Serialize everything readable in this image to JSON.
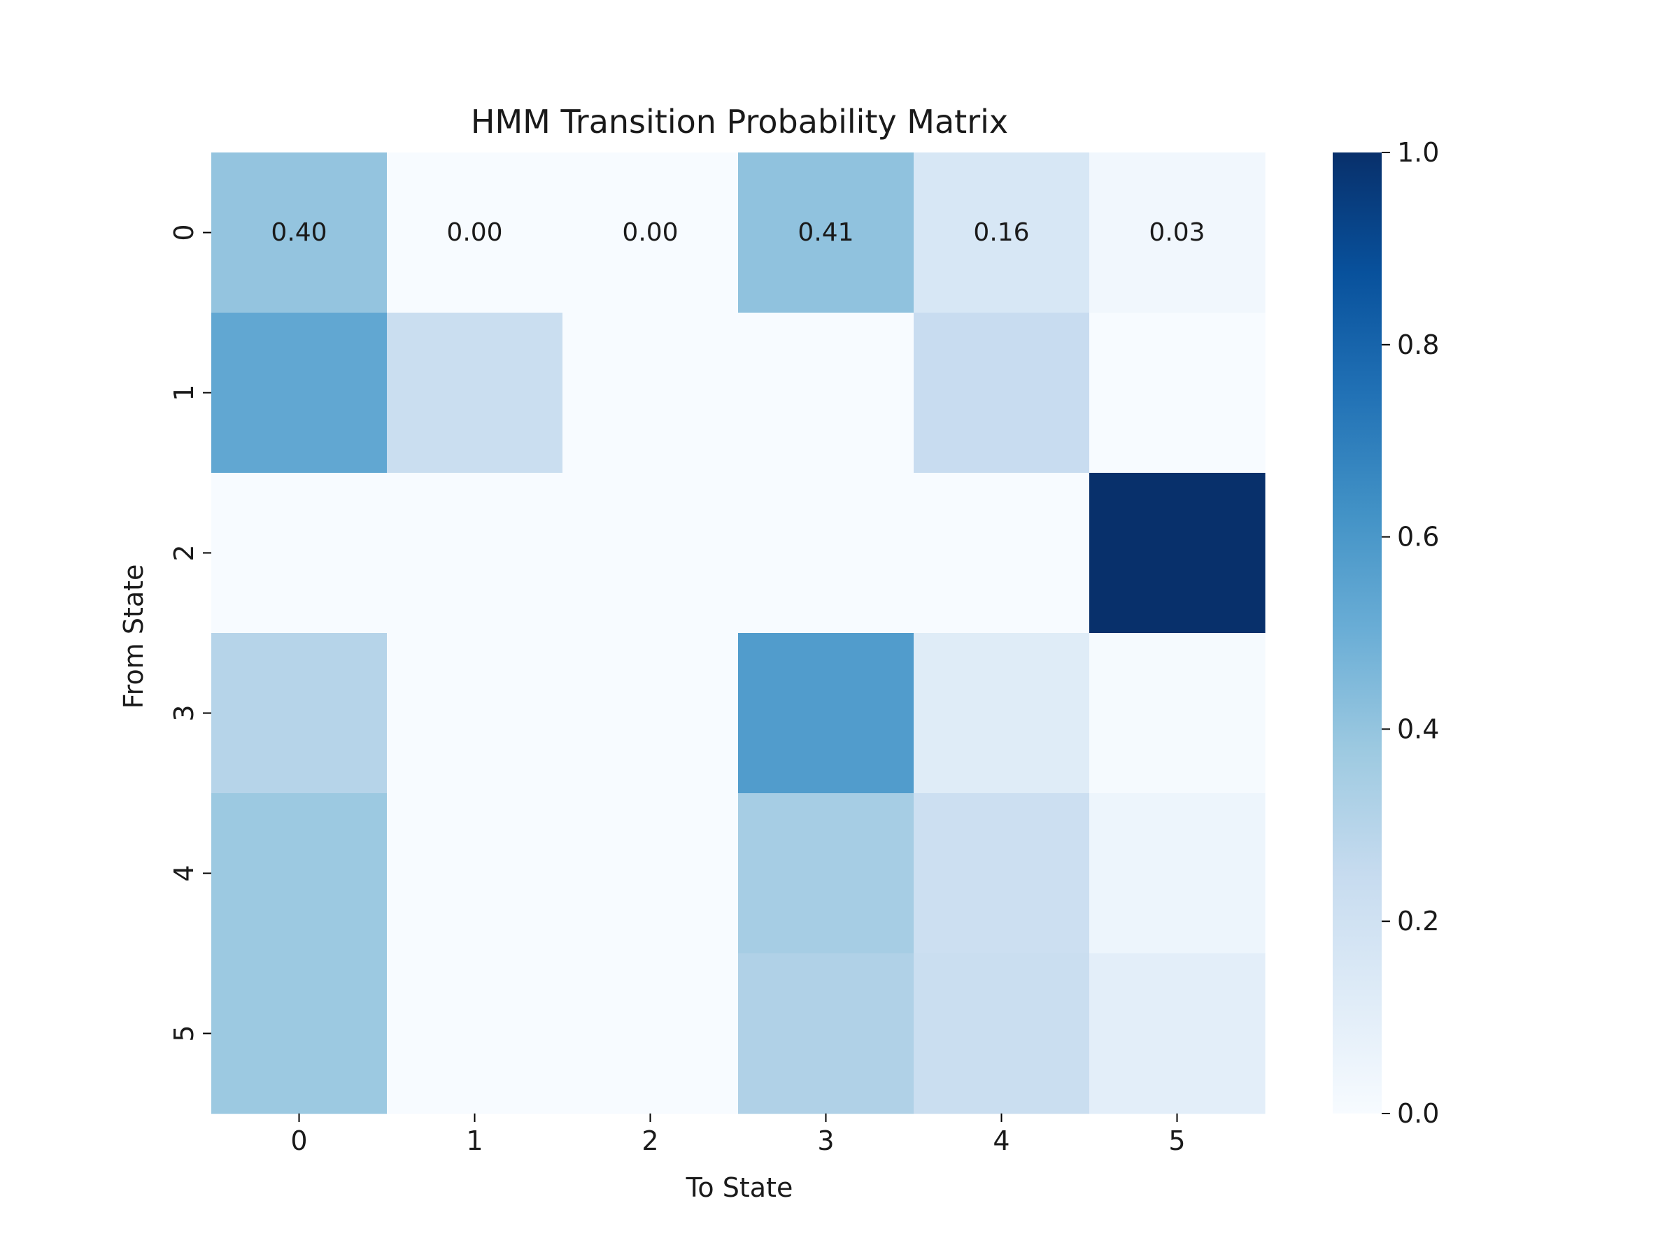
{
  "chart_data": {
    "type": "heatmap",
    "title": "HMM Transition Probability Matrix",
    "xlabel": "To State",
    "ylabel": "From State",
    "x_categories": [
      "0",
      "1",
      "2",
      "3",
      "4",
      "5"
    ],
    "y_categories": [
      "0",
      "1",
      "2",
      "3",
      "4",
      "5"
    ],
    "values": [
      [
        0.4,
        0.0,
        0.0,
        0.41,
        0.16,
        0.03
      ],
      [
        0.53,
        0.23,
        0.0,
        0.0,
        0.24,
        0.0
      ],
      [
        0.0,
        0.0,
        0.0,
        0.0,
        0.0,
        1.0
      ],
      [
        0.3,
        0.0,
        0.0,
        0.58,
        0.12,
        0.01
      ],
      [
        0.38,
        0.0,
        0.0,
        0.35,
        0.22,
        0.05
      ],
      [
        0.38,
        0.0,
        0.0,
        0.32,
        0.23,
        0.1
      ]
    ],
    "annotated_rows": [
      0
    ],
    "annotation_format": "0.00",
    "colormap": "Blues",
    "colormap_stops": [
      "#f7fbff",
      "#deebf7",
      "#c6dbef",
      "#9ecae1",
      "#6baed6",
      "#4292c6",
      "#2171b5",
      "#08519c",
      "#08306b"
    ],
    "colorbar": {
      "vmin": 0.0,
      "vmax": 1.0,
      "ticks": [
        "0.0",
        "0.2",
        "0.4",
        "0.6",
        "0.8",
        "1.0"
      ]
    }
  }
}
